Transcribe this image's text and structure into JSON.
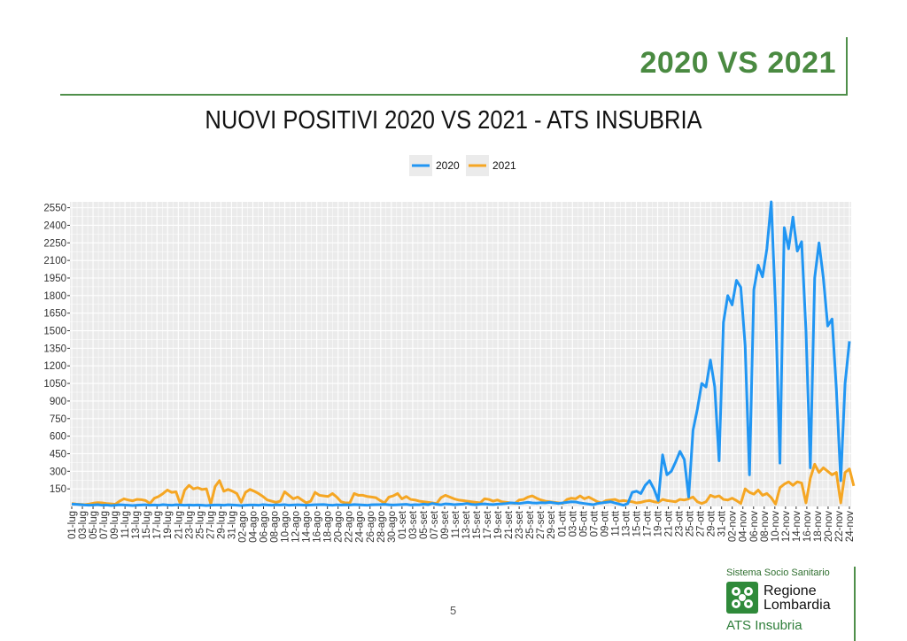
{
  "slide": {
    "title": "2020 VS 2021",
    "page_number": "5"
  },
  "logo": {
    "top_text": "Sistema Socio Sanitario",
    "name_line1": "Regione",
    "name_line2": "Lombardia",
    "bottom_text": "ATS Insubria"
  },
  "colors": {
    "series_2020": "#2196f3",
    "series_2021": "#f5a623",
    "panel": "#ebebeb",
    "grid": "#ffffff",
    "accent": "#4a8a41"
  },
  "chart_data": {
    "type": "line",
    "title": "NUOVI POSITIVI 2020 VS 2021 - ATS INSUBRIA",
    "xlabel": "",
    "ylabel": "",
    "legend_position": "top",
    "grid": true,
    "ylim": [
      0,
      2600
    ],
    "yticks": [
      150,
      300,
      450,
      600,
      750,
      900,
      1050,
      1200,
      1350,
      1500,
      1650,
      1800,
      1950,
      2100,
      2250,
      2400,
      2550
    ],
    "x_tick_labels": [
      "01-lug",
      "03-lug",
      "05-lug",
      "07-lug",
      "09-lug",
      "11-lug",
      "13-lug",
      "15-lug",
      "17-lug",
      "19-lug",
      "21-lug",
      "23-lug",
      "25-lug",
      "27-lug",
      "29-lug",
      "31-lug",
      "02-ago",
      "04-ago",
      "06-ago",
      "08-ago",
      "10-ago",
      "12-ago",
      "14-ago",
      "16-ago",
      "18-ago",
      "20-ago",
      "22-ago",
      "24-ago",
      "26-ago",
      "28-ago",
      "30-ago",
      "01-set",
      "03-set",
      "05-set",
      "07-set",
      "09-set",
      "11-set",
      "13-set",
      "15-set",
      "17-set",
      "19-set",
      "21-set",
      "23-set",
      "25-set",
      "27-set",
      "29-set",
      "01-ott",
      "03-ott",
      "05-ott",
      "07-ott",
      "09-ott",
      "11-ott",
      "13-ott",
      "15-ott",
      "17-ott",
      "19-ott",
      "21-ott",
      "23-ott",
      "25-ott",
      "27-ott",
      "29-ott",
      "31-ott",
      "02-nov",
      "04-nov",
      "06-nov",
      "08-nov",
      "10-nov",
      "12-nov",
      "14-nov",
      "16-nov",
      "18-nov",
      "20-nov",
      "22-nov",
      "24-nov"
    ],
    "series": [
      {
        "name": "2020",
        "values": [
          20,
          18,
          15,
          12,
          10,
          12,
          15,
          10,
          12,
          8,
          10,
          14,
          12,
          10,
          8,
          10,
          12,
          14,
          10,
          12,
          10,
          15,
          12,
          10,
          14,
          12,
          10,
          12,
          10,
          12,
          10,
          8,
          10,
          12,
          12,
          10,
          14,
          12,
          10,
          8,
          10,
          12,
          12,
          10,
          15,
          12,
          10,
          14,
          12,
          15,
          10,
          12,
          14,
          12,
          10,
          12,
          14,
          15,
          16,
          12,
          10,
          14,
          12,
          14,
          12,
          16,
          14,
          12,
          10,
          14,
          15,
          16,
          18,
          14,
          12,
          14,
          16,
          18,
          12,
          15,
          14,
          20,
          15,
          25,
          18,
          14,
          22,
          20,
          15,
          18,
          20,
          25,
          18,
          15,
          20,
          22,
          18,
          16,
          20,
          22,
          25,
          30,
          28,
          25,
          30,
          35,
          30,
          28,
          32,
          30,
          35,
          30,
          25,
          30,
          35,
          40,
          38,
          30,
          25,
          20,
          15,
          25,
          30,
          35,
          40,
          30,
          20,
          10,
          25,
          120,
          130,
          110,
          180,
          220,
          150,
          50,
          440,
          270,
          300,
          380,
          470,
          400,
          80,
          650,
          830,
          1050,
          1020,
          1250,
          1020,
          390,
          1570,
          1800,
          1720,
          1930,
          1870,
          1370,
          270,
          1850,
          2060,
          1960,
          2200,
          2600,
          1700,
          370,
          2380,
          2200,
          2470,
          2180,
          2260,
          1500,
          330,
          1950,
          2250,
          1950,
          1540,
          1600,
          1000,
          220,
          1050,
          1410
        ]
      },
      {
        "name": "2021",
        "values": [
          25,
          20,
          18,
          15,
          20,
          28,
          32,
          30,
          25,
          22,
          18,
          45,
          65,
          55,
          48,
          60,
          58,
          50,
          25,
          70,
          85,
          110,
          140,
          120,
          125,
          20,
          140,
          180,
          150,
          160,
          145,
          150,
          20,
          170,
          220,
          130,
          145,
          130,
          110,
          35,
          120,
          145,
          130,
          110,
          85,
          55,
          45,
          35,
          45,
          125,
          95,
          65,
          80,
          55,
          30,
          45,
          120,
          95,
          90,
          85,
          110,
          80,
          40,
          30,
          30,
          110,
          95,
          95,
          85,
          80,
          75,
          50,
          30,
          80,
          90,
          110,
          65,
          85,
          60,
          55,
          45,
          40,
          35,
          30,
          25,
          75,
          95,
          80,
          65,
          55,
          50,
          45,
          40,
          35,
          30,
          65,
          60,
          45,
          55,
          40,
          35,
          30,
          25,
          55,
          60,
          80,
          90,
          70,
          55,
          45,
          40,
          35,
          30,
          25,
          60,
          70,
          65,
          90,
          65,
          80,
          60,
          40,
          30,
          50,
          55,
          60,
          45,
          50,
          45,
          40,
          30,
          35,
          45,
          50,
          40,
          35,
          60,
          50,
          45,
          40,
          60,
          55,
          65,
          80,
          40,
          25,
          40,
          95,
          80,
          90,
          60,
          55,
          70,
          50,
          25,
          150,
          120,
          105,
          140,
          95,
          110,
          75,
          20,
          160,
          190,
          210,
          180,
          210,
          200,
          30,
          240,
          360,
          290,
          330,
          300,
          270,
          290,
          30,
          290,
          320,
          175
        ]
      }
    ]
  }
}
